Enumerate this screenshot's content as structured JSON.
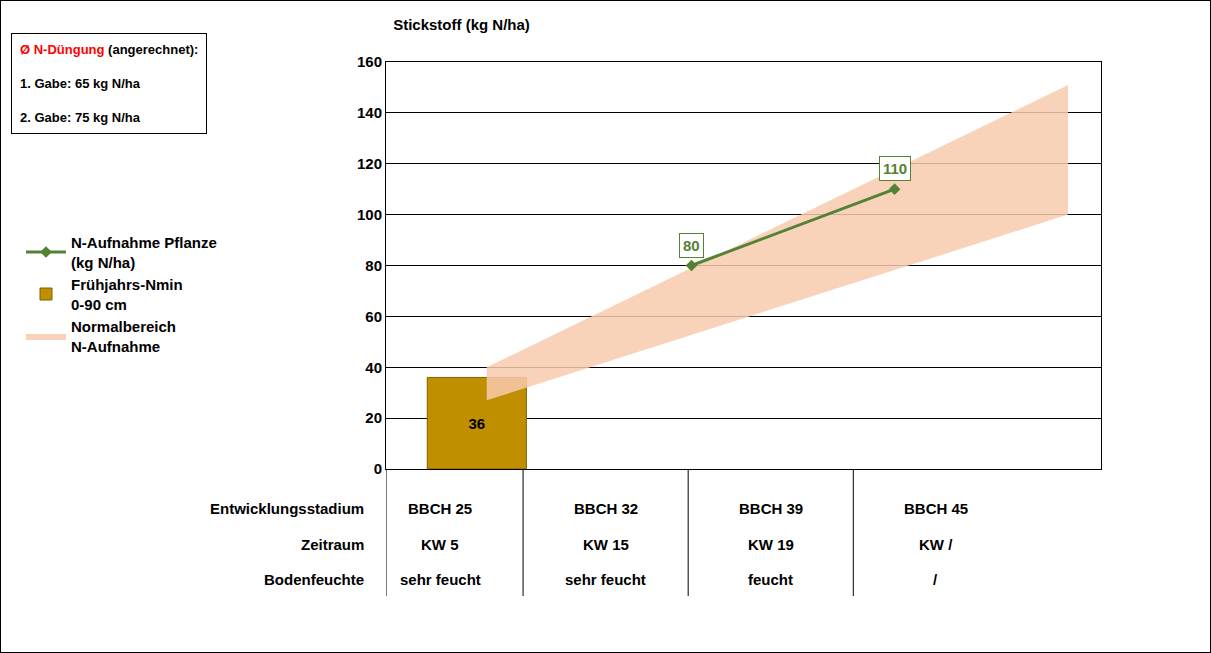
{
  "chart_data": {
    "type": "line",
    "title": "Stickstoff (kg N/ha)",
    "ylim": [
      0,
      160
    ],
    "yticks": [
      0,
      20,
      40,
      60,
      80,
      100,
      120,
      140,
      160
    ],
    "xlim": [
      -0.33,
      4.0
    ],
    "grid": true,
    "tick_labels": "y",
    "legend": "left",
    "notes": {
      "heading_red": "Ø N-Düngung",
      "heading": "(angerechnet):",
      "lines": [
        "1. Gabe: 65 kg N/ha",
        "2. Gabe: 75 kg N/ha"
      ]
    },
    "series": [
      {
        "name": "Normalbereich N-Aufnahme",
        "type": "area",
        "color": "#f8cbad",
        "x": [
          0.28,
          3.8
        ],
        "lower": [
          27,
          100
        ],
        "values": [
          40,
          151
        ]
      },
      {
        "name": "Frühjahrs-Nmin 0-90 cm",
        "type": "bar",
        "color": "#bf8f00",
        "x": [
          0.22
        ],
        "values": [
          36
        ],
        "data_labels": true
      },
      {
        "name": "N-Aufnahme Pflanze (kg N/ha)",
        "type": "line",
        "color": "#548235",
        "marker": "diamond",
        "x": [
          1.52,
          2.75
        ],
        "values": [
          80,
          110
        ],
        "data_labels": true
      }
    ],
    "table": {
      "row_labels": [
        "Entwicklungsstadium",
        "Zeitraum",
        "Bodenfeuchte"
      ],
      "rows": [
        [
          "BBCH 25",
          "BBCH 32",
          "BBCH 39",
          "BBCH 45"
        ],
        [
          "KW 5",
          "KW 15",
          "KW 19",
          "KW /"
        ],
        [
          "sehr feucht",
          "sehr feucht",
          "feucht",
          "/"
        ]
      ]
    }
  }
}
